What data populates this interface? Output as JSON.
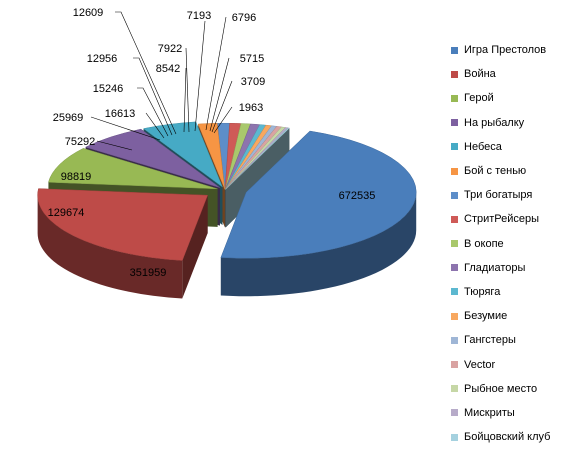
{
  "chart_data": {
    "type": "pie",
    "title": "",
    "legend_position": "right",
    "style": "3d-exploded",
    "categories": [
      "Игра Престолов",
      "Война",
      "Герой",
      "На рыбалку",
      "Небеса",
      "Бой с тенью",
      "Три богатыря",
      "СтритРейсеры",
      "В окопе",
      "Гладиаторы",
      "Тюряга",
      "Безумие",
      "Гангстеры",
      "Vector",
      "Рыбное место",
      "Мискриты",
      "Бойцовский клуб"
    ],
    "values": [
      672535,
      351959,
      129674,
      98819,
      75292,
      25969,
      16613,
      15246,
      12956,
      12609,
      8542,
      7922,
      7193,
      6796,
      5715,
      3709,
      1963
    ],
    "data_labels": [
      "672535",
      "351959",
      "129674",
      "98819",
      "75292",
      "25969",
      "16613",
      "15246",
      "12956",
      "12609",
      "8542",
      "7922",
      "7193",
      "6796",
      "5715",
      "3709",
      "1963"
    ],
    "colors": [
      "#4a7ebb",
      "#be4b48",
      "#98b954",
      "#7d60a0",
      "#46aac5",
      "#f69544",
      "#5d8ec9",
      "#cf5a57",
      "#a9c86c",
      "#8d74ae",
      "#5cb8d0",
      "#f8a860",
      "#9fb6d6",
      "#d9a3a2",
      "#c6d7a6",
      "#b7abc9",
      "#a5d1df"
    ]
  }
}
